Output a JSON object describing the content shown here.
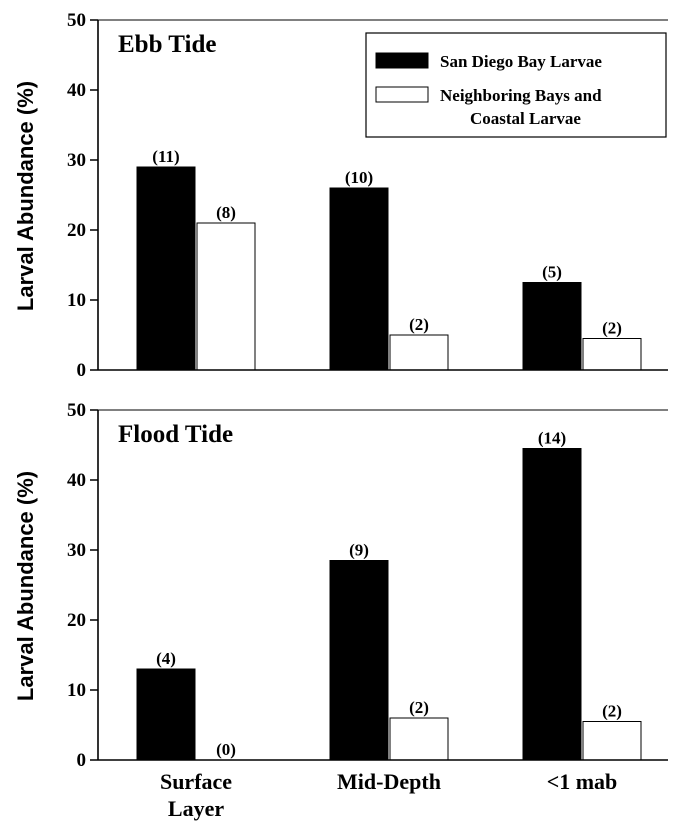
{
  "chart_data": [
    {
      "type": "bar",
      "title": "Ebb Tide",
      "ylabel": "Larval Abundance (%)",
      "ylim": [
        0,
        50
      ],
      "yticks": [
        "0",
        "10",
        "20",
        "30",
        "40",
        "50"
      ],
      "categories": [
        "Surface Layer",
        "Mid-Depth",
        "<1 mab"
      ],
      "series": [
        {
          "name": "San Diego Bay Larvae",
          "color": "#000000",
          "values": [
            29,
            26,
            12.5
          ],
          "labels": [
            "(11)",
            "(10)",
            "(5)"
          ]
        },
        {
          "name": "Neighboring Bays and Coastal Larvae",
          "color": "#ffffff",
          "values": [
            21,
            5,
            4.5
          ],
          "labels": [
            "(8)",
            "(2)",
            "(2)"
          ]
        }
      ],
      "legend": "top-right"
    },
    {
      "type": "bar",
      "title": "Flood Tide",
      "ylabel": "Larval Abundance (%)",
      "ylim": [
        0,
        50
      ],
      "yticks": [
        "0",
        "10",
        "20",
        "30",
        "40",
        "50"
      ],
      "categories": [
        "Surface Layer",
        "Mid-Depth",
        "<1 mab"
      ],
      "series": [
        {
          "name": "San Diego Bay Larvae",
          "color": "#000000",
          "values": [
            13,
            28.5,
            44.5
          ],
          "labels": [
            "(4)",
            "(9)",
            "(14)"
          ]
        },
        {
          "name": "Neighboring Bays and Coastal Larvae",
          "color": "#ffffff",
          "values": [
            0,
            6,
            5.5
          ],
          "labels": [
            "(0)",
            "(2)",
            "(2)"
          ]
        }
      ]
    }
  ],
  "legend": {
    "line1": "San Diego Bay Larvae",
    "line2a": "Neighboring Bays and",
    "line2b": "Coastal Larvae"
  },
  "xaxis": {
    "cat1a": "Surface",
    "cat1b": "Layer",
    "cat2": "Mid-Depth",
    "cat3": "<1 mab"
  }
}
